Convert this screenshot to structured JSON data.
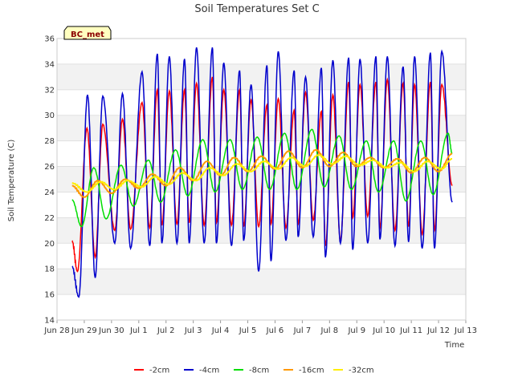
{
  "chart_data": {
    "type": "line",
    "title": "Soil Temperatures Set C",
    "xlabel": "Time",
    "ylabel": "Soil Temperature (C)",
    "station_label": "BC_met",
    "ylim": [
      14,
      36
    ],
    "yticks": [
      14,
      16,
      18,
      20,
      22,
      24,
      26,
      28,
      30,
      32,
      34,
      36
    ],
    "xlim": [
      0,
      15
    ],
    "x_unit": "days since Jun 28",
    "xticks": [
      {
        "x": 0,
        "label": "Jun 28"
      },
      {
        "x": 1,
        "label": "Jun 29"
      },
      {
        "x": 2,
        "label": "Jun 30"
      },
      {
        "x": 3,
        "label": "Jul 1"
      },
      {
        "x": 4,
        "label": "Jul 2"
      },
      {
        "x": 5,
        "label": "Jul 3"
      },
      {
        "x": 6,
        "label": "Jul 4"
      },
      {
        "x": 7,
        "label": "Jul 5"
      },
      {
        "x": 8,
        "label": "Jul 6"
      },
      {
        "x": 9,
        "label": "Jul 7"
      },
      {
        "x": 10,
        "label": "Jul 8"
      },
      {
        "x": 11,
        "label": "Jul 9"
      },
      {
        "x": 12,
        "label": "Jul 10"
      },
      {
        "x": 13,
        "label": "Jul 11"
      },
      {
        "x": 14,
        "label": "Jul 12"
      },
      {
        "x": 15,
        "label": "Jul 13"
      }
    ],
    "grid": true,
    "legend_position": "bottom",
    "series": [
      {
        "name": "-2cm",
        "color": "#ff0000",
        "x": [
          0.55,
          0.75,
          1.1,
          1.4,
          1.68,
          2.12,
          2.4,
          2.7,
          3.12,
          3.4,
          3.68,
          3.85,
          4.12,
          4.4,
          4.68,
          4.85,
          5.12,
          5.4,
          5.7,
          5.85,
          6.12,
          6.4,
          6.7,
          6.85,
          7.12,
          7.4,
          7.7,
          7.85,
          8.12,
          8.4,
          8.7,
          8.85,
          9.12,
          9.4,
          9.7,
          9.85,
          10.12,
          10.4,
          10.7,
          10.85,
          11.12,
          11.4,
          11.7,
          11.85,
          12.12,
          12.4,
          12.7,
          12.9,
          13.12,
          13.4,
          13.7,
          13.85,
          14.12,
          14.5
        ],
        "y": [
          20.2,
          17.8,
          29.0,
          18.9,
          29.3,
          21.0,
          29.7,
          21.1,
          31.0,
          21.2,
          32.0,
          21.4,
          31.9,
          21.5,
          32.0,
          21.6,
          32.5,
          21.4,
          33.0,
          21.6,
          32.0,
          21.4,
          32.0,
          21.3,
          31.2,
          21.3,
          30.8,
          21.5,
          31.3,
          21.2,
          30.4,
          21.5,
          31.8,
          21.8,
          30.3,
          19.8,
          31.6,
          20.2,
          32.6,
          22.0,
          32.4,
          22.1,
          32.6,
          21.2,
          32.8,
          21.0,
          32.5,
          21.3,
          32.4,
          20.7,
          32.6,
          21.0,
          32.4,
          24.5
        ]
      },
      {
        "name": "-4cm",
        "color": "#0000cc",
        "x": [
          0.55,
          0.8,
          1.12,
          1.4,
          1.68,
          2.12,
          2.4,
          2.7,
          3.12,
          3.4,
          3.68,
          3.85,
          4.12,
          4.4,
          4.68,
          4.85,
          5.12,
          5.4,
          5.7,
          5.85,
          6.12,
          6.4,
          6.7,
          6.85,
          7.12,
          7.4,
          7.7,
          7.85,
          8.12,
          8.4,
          8.7,
          8.85,
          9.12,
          9.4,
          9.7,
          9.85,
          10.12,
          10.4,
          10.7,
          10.85,
          11.12,
          11.4,
          11.7,
          11.85,
          12.12,
          12.4,
          12.7,
          12.9,
          13.12,
          13.4,
          13.7,
          13.85,
          14.12,
          14.5
        ],
        "y": [
          18.2,
          15.8,
          31.6,
          17.3,
          31.5,
          20.0,
          31.7,
          19.6,
          33.4,
          19.8,
          34.8,
          20.0,
          34.6,
          20.0,
          34.4,
          20.0,
          35.3,
          20.0,
          35.3,
          20.0,
          34.1,
          19.8,
          33.5,
          20.2,
          32.4,
          17.8,
          33.9,
          18.6,
          35.0,
          20.2,
          33.5,
          20.5,
          33.0,
          20.5,
          33.7,
          18.9,
          34.3,
          20.0,
          34.5,
          19.5,
          34.4,
          20.0,
          34.6,
          20.3,
          34.6,
          19.8,
          33.8,
          20.1,
          34.6,
          19.6,
          34.9,
          19.6,
          35.0,
          23.2
        ]
      },
      {
        "name": "-8cm",
        "color": "#00dd00",
        "x": [
          0.55,
          0.9,
          1.35,
          1.8,
          2.35,
          2.8,
          3.35,
          3.8,
          4.35,
          4.8,
          5.35,
          5.8,
          6.35,
          6.8,
          7.35,
          7.8,
          8.35,
          8.8,
          9.35,
          9.8,
          10.35,
          10.8,
          11.35,
          11.8,
          12.35,
          12.8,
          13.35,
          13.8,
          14.35,
          14.5
        ],
        "y": [
          23.4,
          21.3,
          25.9,
          21.9,
          26.1,
          22.9,
          26.5,
          23.2,
          27.3,
          23.7,
          28.1,
          24.0,
          28.1,
          24.2,
          28.3,
          24.2,
          28.6,
          24.2,
          28.9,
          24.4,
          28.4,
          24.2,
          28.0,
          24.0,
          28.0,
          23.3,
          28.0,
          23.8,
          28.6,
          27.0
        ]
      },
      {
        "name": "-16cm",
        "color": "#ff9900",
        "x": [
          0.55,
          1.0,
          1.5,
          2.0,
          2.5,
          3.0,
          3.5,
          4.0,
          4.5,
          5.0,
          5.5,
          6.0,
          6.5,
          7.0,
          7.5,
          8.0,
          8.5,
          9.0,
          9.5,
          10.0,
          10.5,
          11.0,
          11.5,
          12.0,
          12.5,
          13.0,
          13.5,
          14.0,
          14.5
        ],
        "y": [
          24.5,
          23.6,
          24.9,
          23.9,
          25.0,
          24.3,
          25.4,
          24.5,
          25.9,
          24.9,
          26.4,
          25.3,
          26.7,
          25.6,
          26.8,
          25.8,
          27.2,
          25.9,
          27.3,
          26.0,
          27.1,
          26.0,
          26.7,
          25.9,
          26.6,
          25.5,
          26.7,
          25.6,
          27.0
        ]
      },
      {
        "name": "-32cm",
        "color": "#ffee00",
        "x": [
          0.55,
          1.1,
          1.6,
          2.1,
          2.6,
          3.1,
          3.6,
          4.1,
          4.6,
          5.1,
          5.6,
          6.1,
          6.6,
          7.1,
          7.6,
          8.1,
          8.6,
          9.1,
          9.6,
          10.1,
          10.6,
          11.1,
          11.6,
          12.1,
          12.6,
          13.1,
          13.6,
          14.1,
          14.5
        ],
        "y": [
          24.7,
          24.0,
          24.8,
          24.2,
          24.9,
          24.4,
          25.2,
          24.6,
          25.5,
          24.9,
          25.9,
          25.3,
          26.2,
          25.6,
          26.4,
          25.8,
          26.7,
          26.0,
          26.9,
          26.2,
          26.8,
          26.1,
          26.5,
          25.9,
          26.3,
          25.6,
          26.4,
          25.8,
          26.6
        ]
      }
    ]
  }
}
